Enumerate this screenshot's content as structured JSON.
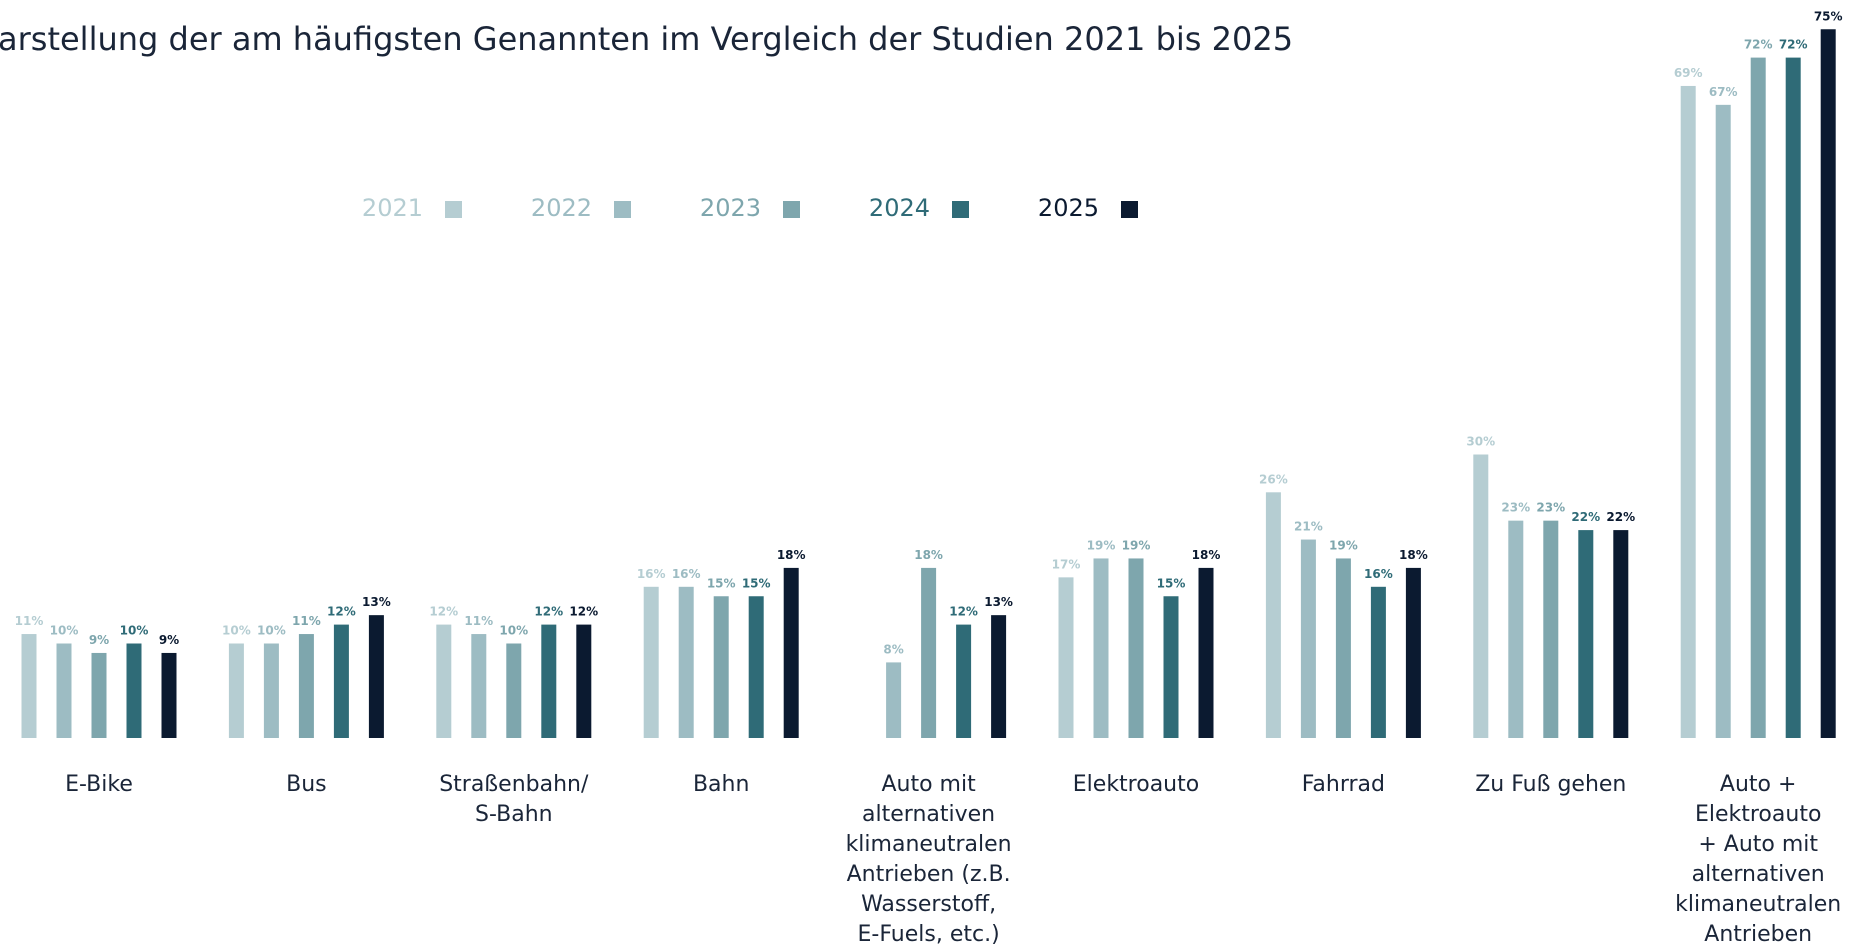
{
  "chart_data": {
    "type": "bar",
    "title": "arstellung der am häufigsten Genannten im Vergleich der Studien 2021 bis 2025",
    "categories": [
      "E-Bike",
      "Bus",
      "Straßenbahn/\nS-Bahn",
      "Bahn",
      "Auto mit\nalternativen\nklimaneutralen\nAntrieben (z.B.\nWasserstoff,\nE-Fuels, etc.)",
      "Elektroauto",
      "Fahrrad",
      "Zu Fuß gehen",
      "Auto +\nElektroauto\n+ Auto mit\nalternativen\nklimaneutralen\nAntrieben"
    ],
    "series": [
      {
        "name": "2021",
        "color": "#b5cdd2",
        "values": [
          11,
          10,
          12,
          16,
          null,
          17,
          26,
          30,
          69
        ],
        "value_labels": [
          "11%",
          "10%",
          "12%",
          "16%",
          null,
          "17%",
          "26%",
          "30%",
          "69%"
        ]
      },
      {
        "name": "2022",
        "color": "#9dbcc3",
        "values": [
          10,
          10,
          11,
          16,
          8,
          19,
          21,
          23,
          67
        ],
        "value_labels": [
          "10%",
          "10%",
          "11%",
          "16%",
          "8%",
          "19%",
          "21%",
          "23%",
          "67%"
        ]
      },
      {
        "name": "2023",
        "color": "#7ea6ad",
        "values": [
          9,
          11,
          10,
          15,
          18,
          19,
          19,
          23,
          72
        ],
        "value_labels": [
          "9%",
          "11%",
          "10%",
          "15%",
          "18%",
          "19%",
          "19%",
          "23%",
          "72%"
        ]
      },
      {
        "name": "2024",
        "color": "#2f6b77",
        "values": [
          10,
          12,
          12,
          15,
          12,
          15,
          16,
          22,
          72
        ],
        "value_labels": [
          "10%",
          "12%",
          "12%",
          "15%",
          "12%",
          "15%",
          "16%",
          "22%",
          "72%"
        ]
      },
      {
        "name": "2025",
        "color": "#0b1a30",
        "values": [
          9,
          13,
          12,
          18,
          13,
          18,
          18,
          22,
          75
        ],
        "value_labels": [
          "9%",
          "13%",
          "12%",
          "18%",
          "13%",
          "18%",
          "18%",
          "22%",
          "75%"
        ]
      }
    ]
  }
}
